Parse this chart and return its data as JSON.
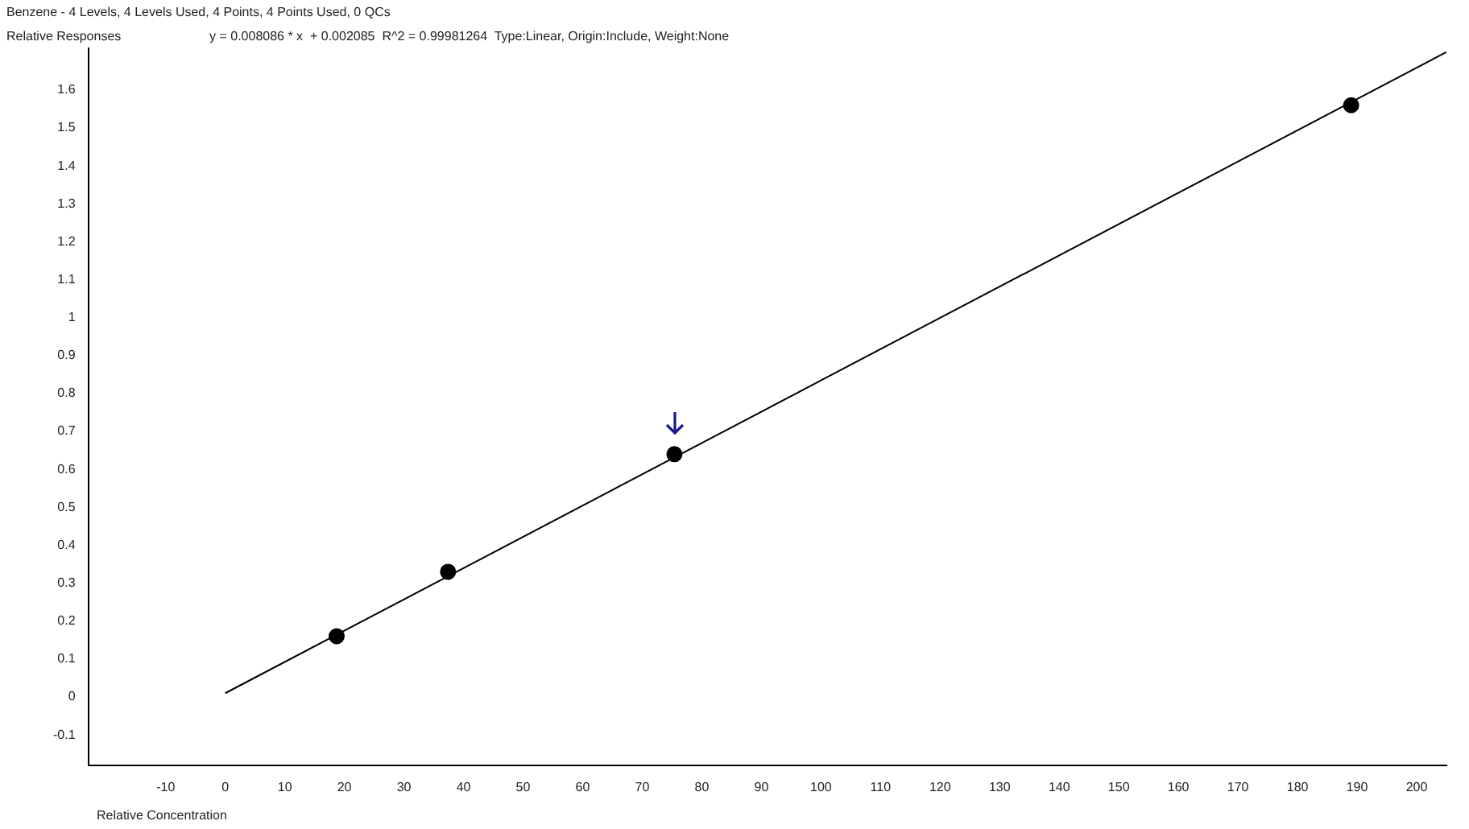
{
  "chart_data": {
    "type": "scatter",
    "title": "Benzene - 4 Levels, 4 Levels Used, 4 Points, 4 Points Used, 0 QCs",
    "ylabel": "Relative Responses",
    "xlabel": "Relative Concentration",
    "annotations": [
      "y = 0.008086 * x  + 0.002085  R^2 = 0.99981264  Type:Linear, Origin:Include, Weight:None"
    ],
    "series": [
      {
        "type": "scatter",
        "color": "#000000",
        "x": [
          18.7,
          37.4,
          75.4,
          189
        ],
        "values": [
          0.16,
          0.33,
          0.64,
          1.56
        ],
        "marker": "circle"
      },
      {
        "type": "line",
        "color": "#000000",
        "x": [
          0,
          205
        ],
        "values": [
          0.01,
          1.7
        ],
        "marker": "none",
        "line_style": "solid"
      }
    ],
    "xlim": [
      -23,
      205
    ],
    "xticks": [
      -10,
      0,
      10,
      20,
      30,
      40,
      50,
      60,
      70,
      80,
      90,
      100,
      110,
      120,
      130,
      140,
      150,
      160,
      170,
      180,
      190,
      200
    ],
    "ylim": [
      -0.18,
      1.71
    ],
    "yticks": [
      -0.1,
      0,
      0.1,
      0.2,
      0.3,
      0.4,
      0.5,
      0.6,
      0.7,
      0.8,
      0.9,
      1,
      1.1,
      1.2,
      1.3,
      1.4,
      1.5,
      1.6
    ],
    "grid": false,
    "legend": false
  }
}
